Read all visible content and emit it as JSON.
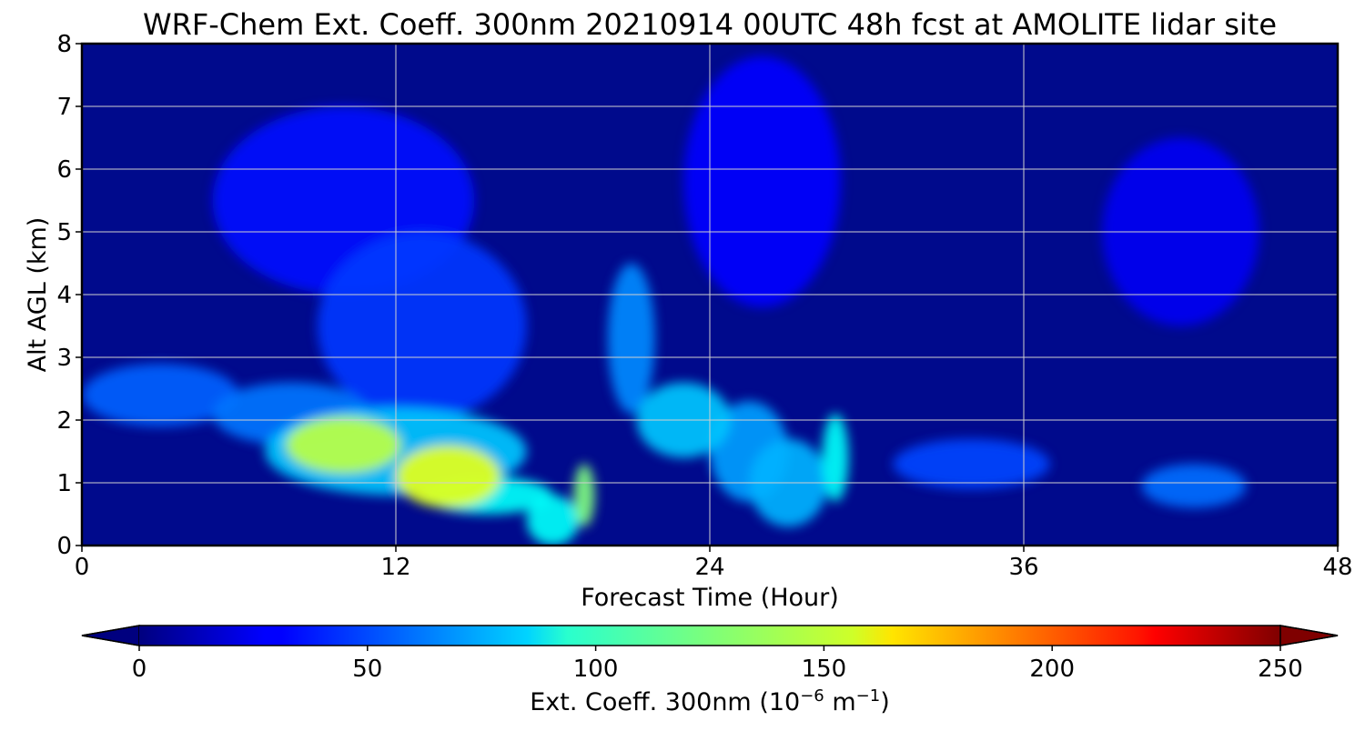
{
  "chart_data": {
    "type": "heatmap",
    "title": "WRF-Chem Ext. Coeff. 300nm  20210914 00UTC 48h fcst at AMOLITE lidar site",
    "xlabel": "Forecast Time (Hour)",
    "ylabel": "Alt AGL (km)",
    "xlim": [
      0,
      48
    ],
    "ylim": [
      0,
      8
    ],
    "x_ticks": [
      0,
      12,
      24,
      36,
      48
    ],
    "y_ticks": [
      0,
      1,
      2,
      3,
      4,
      5,
      6,
      7,
      8
    ],
    "grid": true,
    "colormap": "jet",
    "colorbar": {
      "label_main": "Ext. Coeff. 300nm  (10",
      "label_exp1": "−6",
      "label_mid": " m",
      "label_exp2": "−1",
      "label_end": ")",
      "range": [
        0,
        250
      ],
      "ticks": [
        0,
        50,
        100,
        150,
        200,
        250
      ],
      "extend": "both",
      "orientation": "horizontal"
    },
    "features": [
      {
        "x": 10,
        "y": 1.6,
        "value": 140,
        "sx": 2.2,
        "sy": 0.45
      },
      {
        "x": 14,
        "y": 1.1,
        "value": 150,
        "sx": 2.0,
        "sy": 0.5
      },
      {
        "x": 15.5,
        "y": 0.8,
        "value": 95,
        "sx": 2.5,
        "sy": 0.3
      },
      {
        "x": 12,
        "y": 1.5,
        "value": 80,
        "sx": 5.0,
        "sy": 0.7
      },
      {
        "x": 3,
        "y": 2.4,
        "value": 55,
        "sx": 3.0,
        "sy": 0.5
      },
      {
        "x": 8,
        "y": 2.1,
        "value": 60,
        "sx": 3.0,
        "sy": 0.5
      },
      {
        "x": 19.2,
        "y": 0.8,
        "value": 125,
        "sx": 0.4,
        "sy": 0.5
      },
      {
        "x": 18,
        "y": 0.4,
        "value": 95,
        "sx": 1.0,
        "sy": 0.4
      },
      {
        "x": 21,
        "y": 3.3,
        "value": 65,
        "sx": 0.9,
        "sy": 1.2
      },
      {
        "x": 23,
        "y": 2.0,
        "value": 80,
        "sx": 1.8,
        "sy": 0.6
      },
      {
        "x": 25.5,
        "y": 1.5,
        "value": 70,
        "sx": 1.5,
        "sy": 0.8
      },
      {
        "x": 28.8,
        "y": 1.4,
        "value": 95,
        "sx": 0.5,
        "sy": 0.7
      },
      {
        "x": 27,
        "y": 1.0,
        "value": 75,
        "sx": 1.5,
        "sy": 0.7
      },
      {
        "x": 13,
        "y": 3.5,
        "value": 45,
        "sx": 4.0,
        "sy": 1.5
      },
      {
        "x": 34,
        "y": 1.3,
        "value": 48,
        "sx": 3.0,
        "sy": 0.4
      },
      {
        "x": 42.5,
        "y": 0.95,
        "value": 58,
        "sx": 2.0,
        "sy": 0.35
      },
      {
        "x": 10,
        "y": 5.5,
        "value": 35,
        "sx": 5.0,
        "sy": 1.5
      },
      {
        "x": 26,
        "y": 5.8,
        "value": 32,
        "sx": 3.0,
        "sy": 2.0
      },
      {
        "x": 42,
        "y": 5.0,
        "value": 28,
        "sx": 3.0,
        "sy": 1.5
      }
    ]
  }
}
